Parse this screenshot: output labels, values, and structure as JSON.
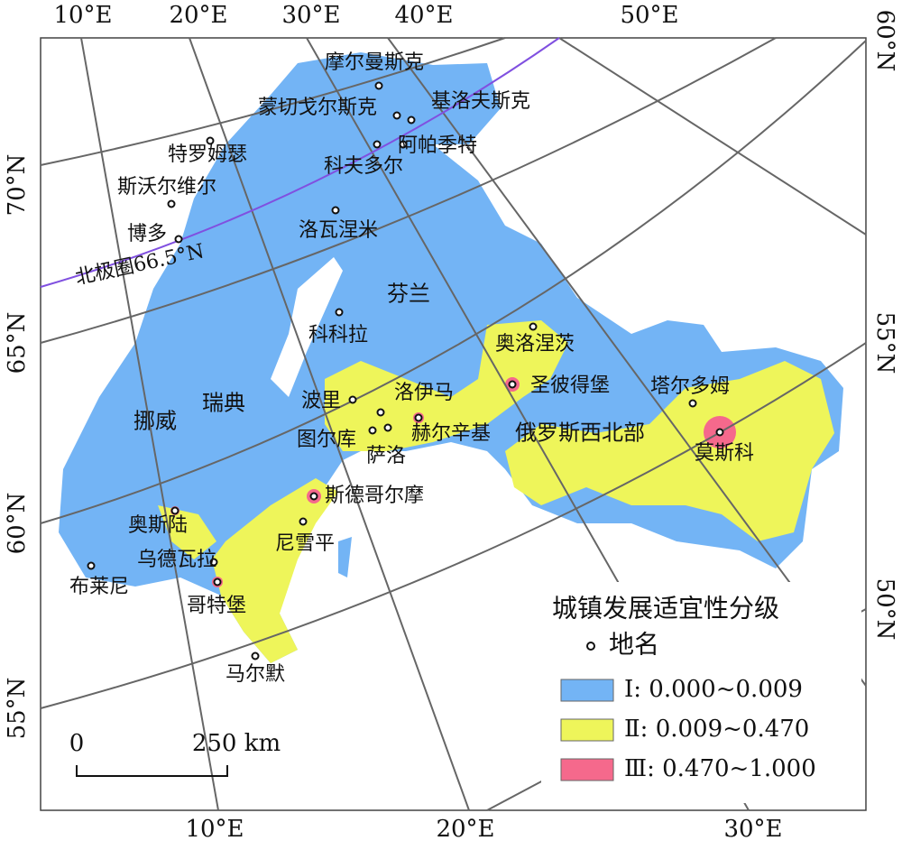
{
  "graticule": {
    "top": [
      "10°E",
      "20°E",
      "30°E",
      "40°E",
      "50°E"
    ],
    "right": [
      "60°N",
      "55°N",
      "50°N"
    ],
    "left": [
      "70°N",
      "65°N",
      "60°N",
      "55°N"
    ],
    "bottom": [
      "10°E",
      "20°E",
      "30°E"
    ]
  },
  "arctic_circle": "北极圈66.5°N",
  "places": [
    "摩尔曼斯克",
    "基洛夫斯克",
    "蒙切戈尔斯克",
    "阿帕季特",
    "科夫多尔",
    "特罗姆瑟",
    "斯沃尔维尔",
    "博多",
    "洛瓦涅米",
    "科科拉",
    "奥洛涅茨",
    "圣彼得堡",
    "塔尔多姆",
    "莫斯科",
    "波里",
    "洛伊马",
    "图尔库",
    "萨洛",
    "赫尔辛基",
    "斯德哥尔摩",
    "奥斯陆",
    "尼雪平",
    "乌德瓦拉",
    "布莱尼",
    "哥特堡",
    "马尔默"
  ],
  "regions": [
    "芬兰",
    "俄罗斯西北部",
    "瑞典",
    "挪威"
  ],
  "legend": {
    "title": "城镇发展适宜性分级",
    "point": "地名",
    "classes": [
      {
        "label": "Ⅰ: 0.000~0.009",
        "color": "#73b4f5"
      },
      {
        "label": "Ⅱ: 0.009~0.470",
        "color": "#eef55a"
      },
      {
        "label": "Ⅲ: 0.470~1.000",
        "color": "#f5698c"
      }
    ]
  },
  "scale_bar": {
    "start": "0",
    "end": "250 km"
  }
}
